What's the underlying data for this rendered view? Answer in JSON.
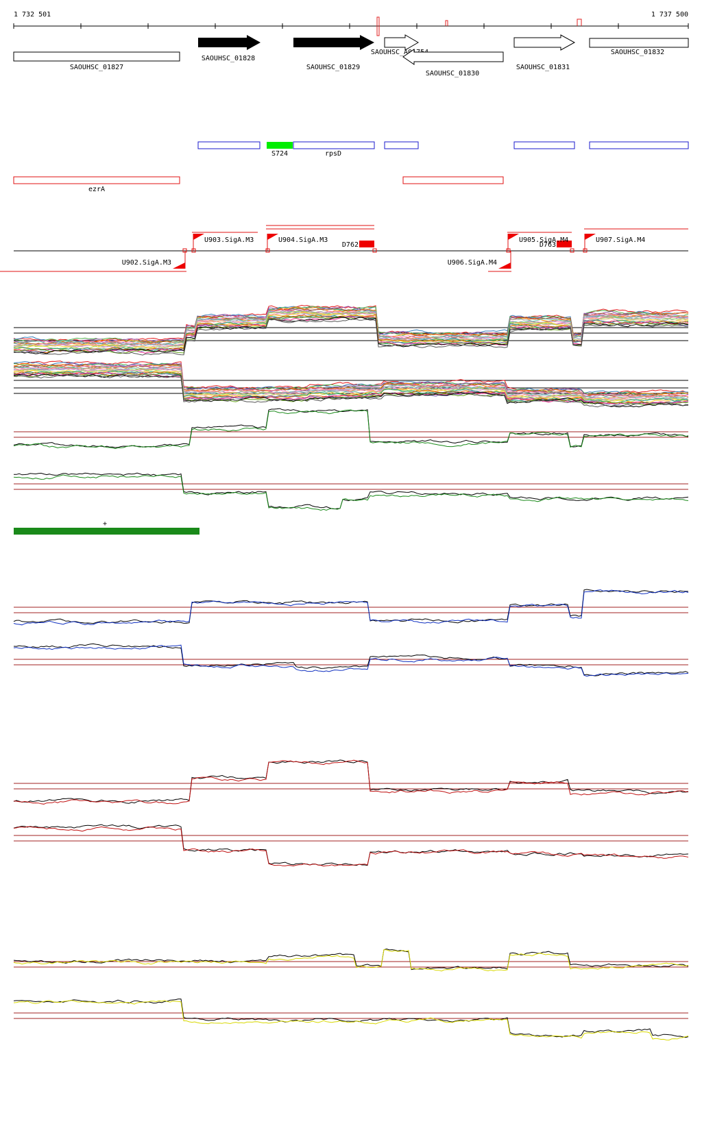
{
  "coords": {
    "start": "1 732 501",
    "end": "1 737 500"
  },
  "genes": {
    "g1827": "SAOUHSC_01827",
    "g1828": "SAOUHSC_01828",
    "g1829": "SAOUHSC_01829",
    "gA01754": "SAOUHSC_A01754",
    "g1830": "SAOUHSC_01830",
    "g1831": "SAOUHSC_01831",
    "g1832": "SAOUHSC_01832"
  },
  "features": {
    "s724": "S724",
    "rpsD": "rpsD",
    "ezrA": "ezrA"
  },
  "promoters": {
    "u902": "U902.SigA.M3",
    "u903": "U903.SigA.M3",
    "u904": "U904.SigA.M3",
    "u905": "U905.SigA.M4",
    "u906": "U906.SigA.M4",
    "u907": "U907.SigA.M4"
  },
  "terminators": {
    "d762": "D762",
    "d763": "D763"
  },
  "segment_mark": "+",
  "colors": {
    "gene_outline": "#000000",
    "gene_filled": "#000000",
    "blue_outline": "#1a1acc",
    "red_outline": "#e01010",
    "srna_green": "#00ee00",
    "promoter_red": "#ee0000",
    "green_track": "#1a8a1a",
    "blue_track": "#1030c0",
    "red_track": "#c01010",
    "yellow_track": "#d8d800",
    "threshold": "#a02020"
  }
}
